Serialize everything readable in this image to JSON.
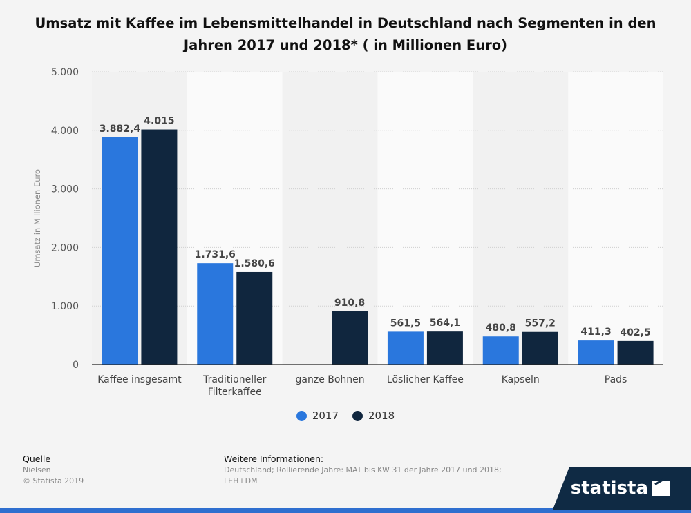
{
  "title": "Umsatz mit Kaffee im Lebensmittelhandel in Deutschland nach Segmenten in den Jahren 2017 und 2018* ( in Millionen Euro)",
  "colors": {
    "s2017": "#2a77dd",
    "s2018": "#10263e"
  },
  "chart_data": {
    "type": "bar",
    "title": "Umsatz mit Kaffee im Lebensmittelhandel in Deutschland nach Segmenten in den Jahren 2017 und 2018* ( in Millionen Euro)",
    "xlabel": "",
    "ylabel": "Umsatz in Millionen Euro",
    "ylim": [
      0,
      5000
    ],
    "yticks": [
      0,
      1000,
      2000,
      3000,
      4000,
      5000
    ],
    "ytick_labels": [
      "0",
      "1.000",
      "2.000",
      "3.000",
      "4.000",
      "5.000"
    ],
    "categories": [
      "Kaffee insgesamt",
      "Traditioneller Filterkaffee",
      "ganze Bohnen",
      "Löslicher Kaffee",
      "Kapseln",
      "Pads"
    ],
    "category_lines": [
      [
        "Kaffee insgesamt"
      ],
      [
        "Traditioneller",
        "Filterkaffee"
      ],
      [
        "ganze Bohnen"
      ],
      [
        "Löslicher Kaffee"
      ],
      [
        "Kapseln"
      ],
      [
        "Pads"
      ]
    ],
    "series": [
      {
        "name": "2017",
        "values": [
          3882.4,
          1731.6,
          null,
          561.5,
          480.8,
          411.3
        ],
        "labels": [
          "3.882,4",
          "1.731,6",
          "",
          "561,5",
          "480,8",
          "411,3"
        ]
      },
      {
        "name": "2018",
        "values": [
          4015,
          1580.6,
          910.8,
          564.1,
          557.2,
          402.5
        ],
        "labels": [
          "4.015",
          "1.580,6",
          "910,8",
          "564,1",
          "557,2",
          "402,5"
        ]
      }
    ],
    "legend": "bottom-center"
  },
  "footer": {
    "source_heading": "Quelle",
    "source": "Nielsen",
    "copyright": "© Statista 2019",
    "info_heading": "Weitere Informationen:",
    "info": "Deutschland; Rollierende Jahre: MAT bis KW 31 der Jahre 2017 und 2018; LEH+DM"
  },
  "brand": "statista"
}
